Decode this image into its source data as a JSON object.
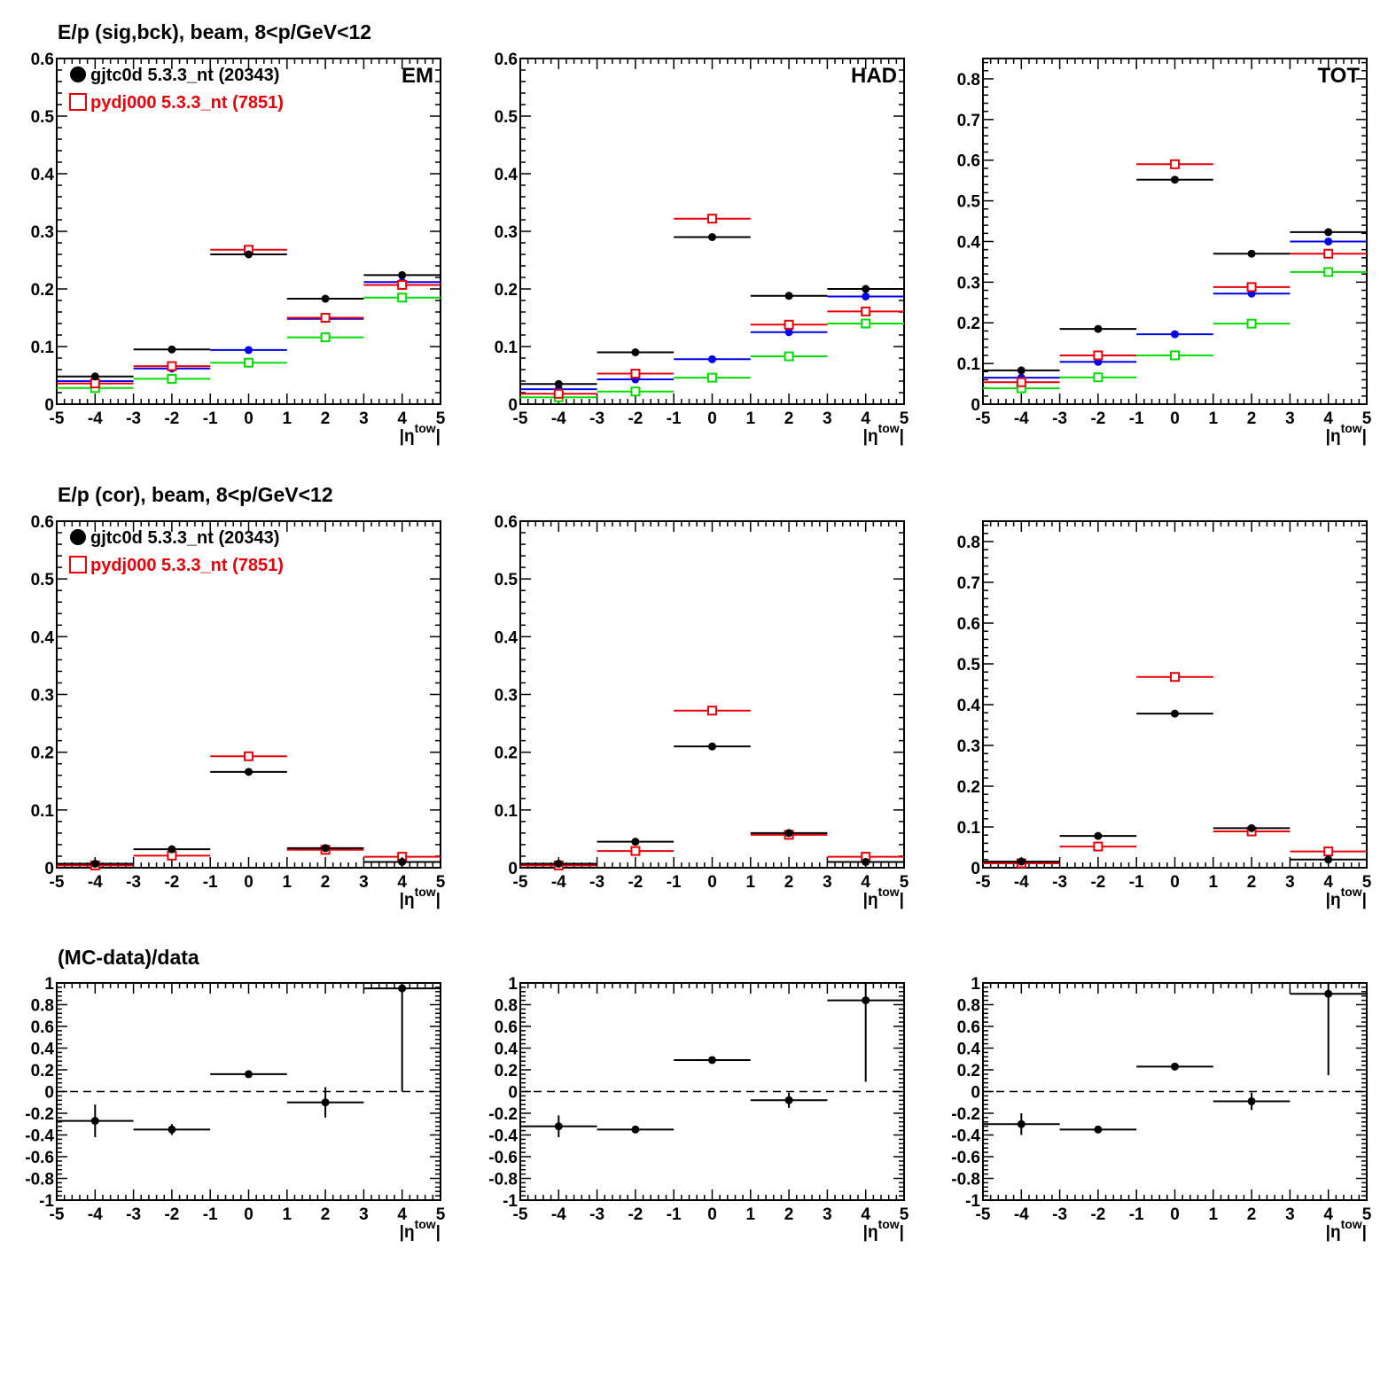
{
  "rows": [
    {
      "title": "E/p (sig,bck), beam,  8<p/GeV<12"
    },
    {
      "title": "E/p (cor), beam,  8<p/GeV<12"
    },
    {
      "title": "(MC-data)/data"
    }
  ],
  "legend": [
    {
      "label": "gjtc0d 5.3.3_nt (20343)",
      "color": "#000000",
      "marker": "filled-circle"
    },
    {
      "label": "pydj000 5.3.3_nt (7851)",
      "color": "#e8000b",
      "marker": "open-square"
    }
  ],
  "x_axis_label": "|η",
  "x_axis_label_sup": "tow",
  "x_axis_label_tail": "|",
  "colors": {
    "data": "#000000",
    "mc": "#e8000b",
    "blue": "#0000ee",
    "green": "#00dd00"
  },
  "chart_data": [
    {
      "type": "scatter",
      "panel": "row1-col1",
      "corner_label": "EM",
      "xlim": [
        -5,
        5
      ],
      "ylim": [
        0,
        0.6
      ],
      "xticks": [
        "-5",
        "-4",
        "-3",
        "-2",
        "-1",
        "0",
        "1",
        "2",
        "3",
        "4",
        "5"
      ],
      "yticks": [
        "0",
        "0.1",
        "0.2",
        "0.3",
        "0.4",
        "0.5",
        "0.6"
      ],
      "x": [
        -4,
        -2,
        0,
        2,
        4
      ],
      "xerr": 1,
      "series": [
        {
          "name": "gjtc0d 5.3.3_nt (20343)",
          "color": "#000000",
          "marker": "filled-circle",
          "values": [
            0.048,
            0.095,
            0.26,
            0.183,
            0.224
          ]
        },
        {
          "name": "pydj000 5.3.3_nt (7851)",
          "color": "#e8000b",
          "marker": "open-square",
          "values": [
            0.036,
            0.066,
            0.268,
            0.15,
            0.207
          ]
        },
        {
          "color": "#0000ee",
          "marker": "filled-circle",
          "values": [
            0.04,
            0.062,
            0.094,
            0.148,
            0.212
          ]
        },
        {
          "color": "#00dd00",
          "marker": "open-square",
          "values": [
            0.028,
            0.044,
            0.072,
            0.116,
            0.185
          ]
        }
      ]
    },
    {
      "type": "scatter",
      "panel": "row1-col2",
      "corner_label": "HAD",
      "xlim": [
        -5,
        5
      ],
      "ylim": [
        0,
        0.6
      ],
      "xticks": [
        "-5",
        "-4",
        "-3",
        "-2",
        "-1",
        "0",
        "1",
        "2",
        "3",
        "4",
        "5"
      ],
      "yticks": [
        "0",
        "0.1",
        "0.2",
        "0.3",
        "0.4",
        "0.5",
        "0.6"
      ],
      "x": [
        -4,
        -2,
        0,
        2,
        4
      ],
      "xerr": 1,
      "series": [
        {
          "color": "#000000",
          "marker": "filled-circle",
          "values": [
            0.035,
            0.09,
            0.29,
            0.188,
            0.2
          ]
        },
        {
          "color": "#e8000b",
          "marker": "open-square",
          "values": [
            0.018,
            0.053,
            0.322,
            0.138,
            0.161
          ]
        },
        {
          "color": "#0000ee",
          "marker": "filled-circle",
          "values": [
            0.026,
            0.043,
            0.078,
            0.125,
            0.187
          ]
        },
        {
          "color": "#00dd00",
          "marker": "open-square",
          "values": [
            0.012,
            0.022,
            0.046,
            0.083,
            0.14
          ]
        }
      ]
    },
    {
      "type": "scatter",
      "panel": "row1-col3",
      "corner_label": "TOT",
      "xlim": [
        -5,
        5
      ],
      "ylim": [
        0,
        0.85
      ],
      "xticks": [
        "-5",
        "-4",
        "-3",
        "-2",
        "-1",
        "0",
        "1",
        "2",
        "3",
        "4",
        "5"
      ],
      "yticks": [
        "0",
        "0.1",
        "0.2",
        "0.3",
        "0.4",
        "0.5",
        "0.6",
        "0.7",
        "0.8"
      ],
      "x": [
        -4,
        -2,
        0,
        2,
        4
      ],
      "xerr": 1,
      "series": [
        {
          "color": "#000000",
          "marker": "filled-circle",
          "values": [
            0.083,
            0.185,
            0.552,
            0.37,
            0.423
          ]
        },
        {
          "color": "#e8000b",
          "marker": "open-square",
          "values": [
            0.054,
            0.12,
            0.59,
            0.288,
            0.37
          ]
        },
        {
          "color": "#0000ee",
          "marker": "filled-circle",
          "values": [
            0.065,
            0.104,
            0.172,
            0.272,
            0.4
          ]
        },
        {
          "color": "#00dd00",
          "marker": "open-square",
          "values": [
            0.039,
            0.066,
            0.12,
            0.198,
            0.325
          ]
        }
      ]
    },
    {
      "type": "scatter",
      "panel": "row2-col1",
      "xlim": [
        -5,
        5
      ],
      "ylim": [
        0,
        0.6
      ],
      "xticks": [
        "-5",
        "-4",
        "-3",
        "-2",
        "-1",
        "0",
        "1",
        "2",
        "3",
        "4",
        "5"
      ],
      "yticks": [
        "0",
        "0.1",
        "0.2",
        "0.3",
        "0.4",
        "0.5",
        "0.6"
      ],
      "x": [
        -4,
        -2,
        0,
        2,
        4
      ],
      "xerr": 1,
      "series": [
        {
          "name": "gjtc0d 5.3.3_nt (20343)",
          "color": "#000000",
          "marker": "filled-circle",
          "values": [
            0.007,
            0.032,
            0.166,
            0.034,
            0.01
          ],
          "yerr": [
            0.006,
            0.004,
            0.004,
            0.004,
            0.008
          ]
        },
        {
          "name": "pydj000 5.3.3_nt (7851)",
          "color": "#e8000b",
          "marker": "open-square",
          "values": [
            0.004,
            0.021,
            0.193,
            0.031,
            0.019
          ]
        }
      ]
    },
    {
      "type": "scatter",
      "panel": "row2-col2",
      "xlim": [
        -5,
        5
      ],
      "ylim": [
        0,
        0.6
      ],
      "xticks": [
        "-5",
        "-4",
        "-3",
        "-2",
        "-1",
        "0",
        "1",
        "2",
        "3",
        "4",
        "5"
      ],
      "yticks": [
        "0",
        "0.1",
        "0.2",
        "0.3",
        "0.4",
        "0.5",
        "0.6"
      ],
      "x": [
        -4,
        -2,
        0,
        2,
        4
      ],
      "xerr": 1,
      "series": [
        {
          "color": "#000000",
          "marker": "filled-circle",
          "values": [
            0.007,
            0.045,
            0.21,
            0.06,
            0.01
          ]
        },
        {
          "color": "#e8000b",
          "marker": "open-square",
          "values": [
            0.004,
            0.029,
            0.272,
            0.057,
            0.019
          ]
        }
      ]
    },
    {
      "type": "scatter",
      "panel": "row2-col3",
      "xlim": [
        -5,
        5
      ],
      "ylim": [
        0,
        0.85
      ],
      "xticks": [
        "-5",
        "-4",
        "-3",
        "-2",
        "-1",
        "0",
        "1",
        "2",
        "3",
        "4",
        "5"
      ],
      "yticks": [
        "0",
        "0.1",
        "0.2",
        "0.3",
        "0.4",
        "0.5",
        "0.6",
        "0.7",
        "0.8"
      ],
      "x": [
        -4,
        -2,
        0,
        2,
        4
      ],
      "xerr": 1,
      "series": [
        {
          "color": "#000000",
          "marker": "filled-circle",
          "values": [
            0.015,
            0.078,
            0.378,
            0.097,
            0.02
          ]
        },
        {
          "color": "#e8000b",
          "marker": "open-square",
          "values": [
            0.011,
            0.052,
            0.468,
            0.089,
            0.04
          ]
        }
      ]
    },
    {
      "type": "scatter",
      "panel": "row3-col1",
      "xlim": [
        -5,
        5
      ],
      "ylim": [
        -1,
        1
      ],
      "reference_line": 0,
      "xticks": [
        "-5",
        "-4",
        "-3",
        "-2",
        "-1",
        "0",
        "1",
        "2",
        "3",
        "4",
        "5"
      ],
      "yticks": [
        "-1",
        "-0.8",
        "-0.6",
        "-0.4",
        "-0.2",
        "0",
        "0.2",
        "0.4",
        "0.6",
        "0.8",
        "1"
      ],
      "x": [
        -4,
        -2,
        0,
        2,
        4
      ],
      "xerr": 1,
      "series": [
        {
          "color": "#000000",
          "marker": "filled-circle",
          "values": [
            -0.27,
            -0.35,
            0.16,
            -0.1,
            0.95
          ],
          "yerr": [
            0.15,
            0.05,
            0.02,
            0.14,
            0.95
          ]
        }
      ]
    },
    {
      "type": "scatter",
      "panel": "row3-col2",
      "xlim": [
        -5,
        5
      ],
      "ylim": [
        -1,
        1
      ],
      "reference_line": 0,
      "xticks": [
        "-5",
        "-4",
        "-3",
        "-2",
        "-1",
        "0",
        "1",
        "2",
        "3",
        "4",
        "5"
      ],
      "yticks": [
        "-1",
        "-0.8",
        "-0.6",
        "-0.4",
        "-0.2",
        "0",
        "0.2",
        "0.4",
        "0.6",
        "0.8",
        "1"
      ],
      "x": [
        -4,
        -2,
        0,
        2,
        4
      ],
      "xerr": 1,
      "series": [
        {
          "color": "#000000",
          "marker": "filled-circle",
          "values": [
            -0.32,
            -0.35,
            0.29,
            -0.08,
            0.84
          ],
          "yerr": [
            0.1,
            0.02,
            0.02,
            0.07,
            0.75
          ]
        }
      ]
    },
    {
      "type": "scatter",
      "panel": "row3-col3",
      "xlim": [
        -5,
        5
      ],
      "ylim": [
        -1,
        1
      ],
      "reference_line": 0,
      "xticks": [
        "-5",
        "-4",
        "-3",
        "-2",
        "-1",
        "0",
        "1",
        "2",
        "3",
        "4",
        "5"
      ],
      "yticks": [
        "-1",
        "-0.8",
        "-0.6",
        "-0.4",
        "-0.2",
        "0",
        "0.2",
        "0.4",
        "0.6",
        "0.8",
        "1"
      ],
      "x": [
        -4,
        -2,
        0,
        2,
        4
      ],
      "xerr": 1,
      "series": [
        {
          "color": "#000000",
          "marker": "filled-circle",
          "values": [
            -0.3,
            -0.35,
            0.23,
            -0.09,
            0.9
          ],
          "yerr": [
            0.1,
            0.02,
            0.02,
            0.08,
            0.75
          ]
        }
      ]
    }
  ]
}
